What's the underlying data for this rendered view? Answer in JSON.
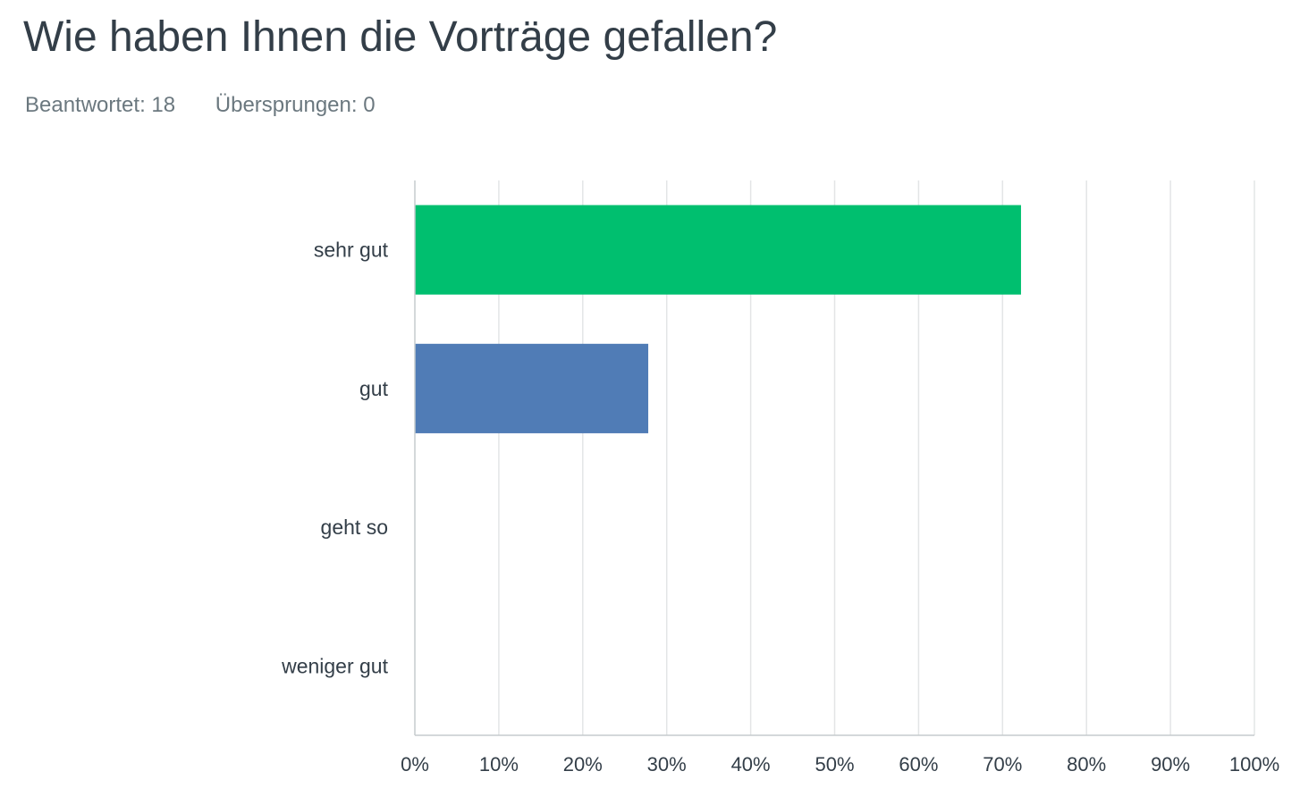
{
  "question": {
    "title": "Wie haben Ihnen die Vorträge gefallen?",
    "answered": "Beantwortet: 18",
    "skipped": "Übersprungen: 0"
  },
  "colors": {
    "bars": [
      "#00bf6f",
      "#507cb6",
      "#f9be00",
      "#6bc8cd"
    ],
    "text": "#333e48",
    "muted": "#6b787f",
    "grid": "#e3e5e6"
  },
  "chart_data": {
    "type": "bar",
    "orientation": "horizontal",
    "categories": [
      "sehr gut",
      "gut",
      "geht so",
      "weniger gut"
    ],
    "values": [
      72.2,
      27.8,
      0,
      0
    ],
    "unit": "%",
    "xlim": [
      0,
      100
    ],
    "ticks": [
      "0%",
      "10%",
      "20%",
      "30%",
      "40%",
      "50%",
      "60%",
      "70%",
      "80%",
      "90%",
      "100%"
    ],
    "grid": true,
    "legend": "none"
  }
}
